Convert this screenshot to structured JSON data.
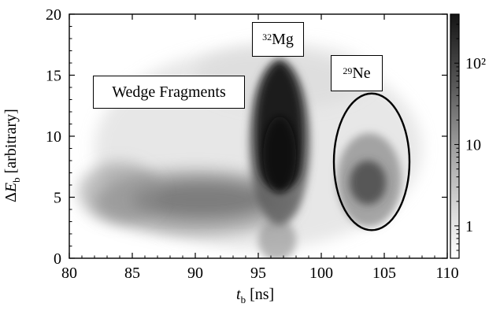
{
  "chart_data": {
    "type": "heatmap",
    "xlabel": "t_b [ns]",
    "ylabel": "ΔE_b [arbitrary]",
    "xlim": [
      80,
      110
    ],
    "ylim": [
      0,
      20
    ],
    "x_ticks": [
      "80",
      "85",
      "90",
      "95",
      "100",
      "105",
      "110"
    ],
    "y_ticks": [
      "0",
      "5",
      "10",
      "15",
      "20"
    ],
    "colorbar": {
      "scale": "log",
      "range": [
        0.4,
        400
      ],
      "ticks": [
        "1",
        "10",
        "10²"
      ],
      "colormap": "white-to-black"
    },
    "grid": false,
    "annotations": {
      "wedge": "Wedge Fragments",
      "mg_mass": "32",
      "mg_element": "Mg",
      "ne_mass": "29",
      "ne_element": "Ne"
    },
    "clusters": [
      {
        "label": "Wedge Fragments",
        "x_center": 89,
        "y_center": 4.5,
        "peak_counts": 60
      },
      {
        "label": "32Mg",
        "x_center": 96.7,
        "y_center": 8.5,
        "peak_counts": 400
      },
      {
        "label": "29Ne",
        "x_center": 103.8,
        "y_center": 6.3,
        "peak_counts": 40
      }
    ],
    "selection_ellipse": {
      "x_center": 104.0,
      "y_center": 7.9,
      "x_radius": 3.0,
      "y_radius": 5.6
    }
  },
  "axis_titles": {
    "x_var": "t",
    "x_sub": "b",
    "x_unit": " [ns]",
    "y_prefix": "Δ",
    "y_var": "E",
    "y_sub": "b",
    "y_unit": " [arbitrary]"
  }
}
